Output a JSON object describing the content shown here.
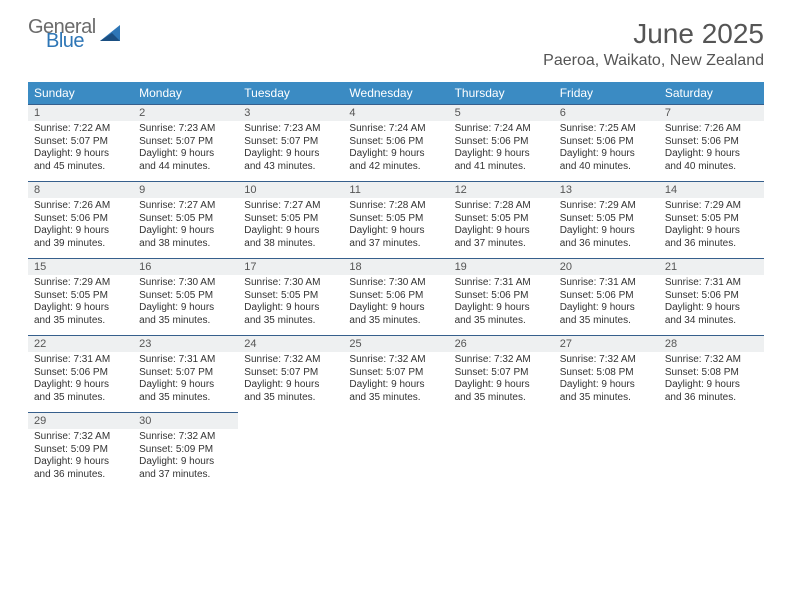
{
  "brand": {
    "general": "General",
    "blue": "Blue"
  },
  "title": "June 2025",
  "location": "Paeroa, Waikato, New Zealand",
  "colors": {
    "header_bg": "#3b8bc3",
    "header_text": "#ffffff",
    "daynum_bg": "#eef0f1",
    "rule": "#365f8c",
    "brand_gray": "#6b6b6b",
    "brand_blue": "#2e76b6",
    "page_bg": "#ffffff",
    "text": "#333333"
  },
  "layout": {
    "columns": 7,
    "rows": 5,
    "first_weekday_offset": 0
  },
  "weekdays": [
    "Sunday",
    "Monday",
    "Tuesday",
    "Wednesday",
    "Thursday",
    "Friday",
    "Saturday"
  ],
  "days": [
    {
      "n": 1,
      "sunrise": "7:22 AM",
      "sunset": "5:07 PM",
      "daylight": "9 hours and 45 minutes."
    },
    {
      "n": 2,
      "sunrise": "7:23 AM",
      "sunset": "5:07 PM",
      "daylight": "9 hours and 44 minutes."
    },
    {
      "n": 3,
      "sunrise": "7:23 AM",
      "sunset": "5:07 PM",
      "daylight": "9 hours and 43 minutes."
    },
    {
      "n": 4,
      "sunrise": "7:24 AM",
      "sunset": "5:06 PM",
      "daylight": "9 hours and 42 minutes."
    },
    {
      "n": 5,
      "sunrise": "7:24 AM",
      "sunset": "5:06 PM",
      "daylight": "9 hours and 41 minutes."
    },
    {
      "n": 6,
      "sunrise": "7:25 AM",
      "sunset": "5:06 PM",
      "daylight": "9 hours and 40 minutes."
    },
    {
      "n": 7,
      "sunrise": "7:26 AM",
      "sunset": "5:06 PM",
      "daylight": "9 hours and 40 minutes."
    },
    {
      "n": 8,
      "sunrise": "7:26 AM",
      "sunset": "5:06 PM",
      "daylight": "9 hours and 39 minutes."
    },
    {
      "n": 9,
      "sunrise": "7:27 AM",
      "sunset": "5:05 PM",
      "daylight": "9 hours and 38 minutes."
    },
    {
      "n": 10,
      "sunrise": "7:27 AM",
      "sunset": "5:05 PM",
      "daylight": "9 hours and 38 minutes."
    },
    {
      "n": 11,
      "sunrise": "7:28 AM",
      "sunset": "5:05 PM",
      "daylight": "9 hours and 37 minutes."
    },
    {
      "n": 12,
      "sunrise": "7:28 AM",
      "sunset": "5:05 PM",
      "daylight": "9 hours and 37 minutes."
    },
    {
      "n": 13,
      "sunrise": "7:29 AM",
      "sunset": "5:05 PM",
      "daylight": "9 hours and 36 minutes."
    },
    {
      "n": 14,
      "sunrise": "7:29 AM",
      "sunset": "5:05 PM",
      "daylight": "9 hours and 36 minutes."
    },
    {
      "n": 15,
      "sunrise": "7:29 AM",
      "sunset": "5:05 PM",
      "daylight": "9 hours and 35 minutes."
    },
    {
      "n": 16,
      "sunrise": "7:30 AM",
      "sunset": "5:05 PM",
      "daylight": "9 hours and 35 minutes."
    },
    {
      "n": 17,
      "sunrise": "7:30 AM",
      "sunset": "5:05 PM",
      "daylight": "9 hours and 35 minutes."
    },
    {
      "n": 18,
      "sunrise": "7:30 AM",
      "sunset": "5:06 PM",
      "daylight": "9 hours and 35 minutes."
    },
    {
      "n": 19,
      "sunrise": "7:31 AM",
      "sunset": "5:06 PM",
      "daylight": "9 hours and 35 minutes."
    },
    {
      "n": 20,
      "sunrise": "7:31 AM",
      "sunset": "5:06 PM",
      "daylight": "9 hours and 35 minutes."
    },
    {
      "n": 21,
      "sunrise": "7:31 AM",
      "sunset": "5:06 PM",
      "daylight": "9 hours and 34 minutes."
    },
    {
      "n": 22,
      "sunrise": "7:31 AM",
      "sunset": "5:06 PM",
      "daylight": "9 hours and 35 minutes."
    },
    {
      "n": 23,
      "sunrise": "7:31 AM",
      "sunset": "5:07 PM",
      "daylight": "9 hours and 35 minutes."
    },
    {
      "n": 24,
      "sunrise": "7:32 AM",
      "sunset": "5:07 PM",
      "daylight": "9 hours and 35 minutes."
    },
    {
      "n": 25,
      "sunrise": "7:32 AM",
      "sunset": "5:07 PM",
      "daylight": "9 hours and 35 minutes."
    },
    {
      "n": 26,
      "sunrise": "7:32 AM",
      "sunset": "5:07 PM",
      "daylight": "9 hours and 35 minutes."
    },
    {
      "n": 27,
      "sunrise": "7:32 AM",
      "sunset": "5:08 PM",
      "daylight": "9 hours and 35 minutes."
    },
    {
      "n": 28,
      "sunrise": "7:32 AM",
      "sunset": "5:08 PM",
      "daylight": "9 hours and 36 minutes."
    },
    {
      "n": 29,
      "sunrise": "7:32 AM",
      "sunset": "5:09 PM",
      "daylight": "9 hours and 36 minutes."
    },
    {
      "n": 30,
      "sunrise": "7:32 AM",
      "sunset": "5:09 PM",
      "daylight": "9 hours and 37 minutes."
    }
  ],
  "labels": {
    "sunrise": "Sunrise:",
    "sunset": "Sunset:",
    "daylight": "Daylight:"
  }
}
